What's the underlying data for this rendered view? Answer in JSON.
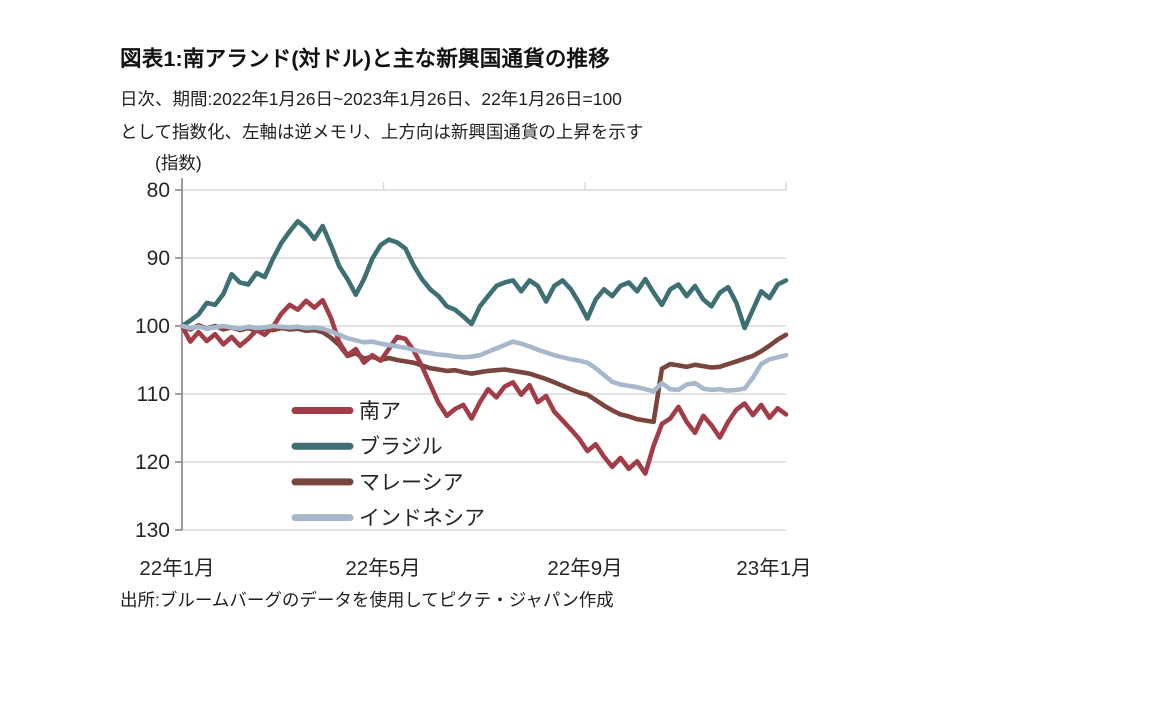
{
  "header": {
    "title": "図表1:南アランド(対ドル)と主な新興国通貨の推移",
    "subtitle_line1": "日次、期間:2022年1月26日~2023年1月26日、22年1月26日=100",
    "subtitle_line2": "として指数化、左軸は逆メモリ、上方向は新興国通貨の上昇を示す",
    "unit_label": "(指数)"
  },
  "footer": {
    "source": "出所:ブルームバーグのデータを使用してピクテ・ジャパン作成"
  },
  "colors": {
    "grid": "#D9D9D9",
    "axis": "#7F7F7F",
    "text": "#262626",
    "title_text": "#111111"
  },
  "chart_data": {
    "type": "line",
    "title": "図表1:南アランド(対ドル)と主な新興国通貨の推移",
    "xlabel": "",
    "ylabel": "(指数)",
    "grid": true,
    "legend_position": "inside-lower-left",
    "y_axis": {
      "range": [
        80,
        130
      ],
      "ticks": [
        80,
        90,
        100,
        110,
        120,
        130
      ],
      "reversed": true
    },
    "x_axis": {
      "range_days": [
        0,
        365
      ],
      "tick_labels": [
        "22年1月",
        "22年5月",
        "22年9月",
        "23年1月"
      ]
    },
    "x_days": [
      0,
      5,
      10,
      15,
      20,
      25,
      30,
      35,
      40,
      45,
      50,
      55,
      60,
      65,
      70,
      75,
      80,
      85,
      90,
      95,
      100,
      105,
      110,
      115,
      120,
      125,
      130,
      135,
      140,
      145,
      150,
      155,
      160,
      165,
      170,
      175,
      180,
      185,
      190,
      195,
      200,
      205,
      210,
      215,
      220,
      225,
      230,
      235,
      240,
      245,
      250,
      255,
      260,
      265,
      270,
      275,
      280,
      285,
      290,
      295,
      300,
      305,
      310,
      315,
      320,
      325,
      330,
      335,
      340,
      345,
      350,
      355,
      360,
      365
    ],
    "series": [
      {
        "name": "南ア",
        "color": "#A23C46",
        "values": [
          100,
          102.3,
          100.9,
          102.2,
          101.2,
          102.7,
          101.6,
          102.9,
          101.9,
          100.6,
          101.3,
          100.1,
          98.2,
          96.9,
          97.6,
          96.3,
          97.3,
          96.2,
          98.8,
          102.4,
          104.3,
          103.4,
          105.4,
          104.3,
          105.1,
          103.4,
          101.6,
          101.9,
          103.6,
          105.9,
          108.6,
          111.3,
          113.2,
          112.2,
          111.6,
          113.6,
          111.2,
          109.3,
          110.5,
          108.9,
          108.3,
          110.1,
          108.7,
          111.2,
          110.3,
          112.6,
          113.9,
          115.2,
          116.6,
          118.4,
          117.4,
          119.2,
          120.7,
          119.4,
          121.0,
          119.9,
          121.7,
          117.6,
          114.4,
          113.6,
          111.9,
          114.1,
          115.7,
          113.2,
          114.6,
          116.4,
          114.1,
          112.3,
          111.4,
          113.1,
          111.6,
          113.5,
          112.1,
          113.0
        ]
      },
      {
        "name": "ブラジル",
        "color": "#3D6F73",
        "values": [
          100,
          99.2,
          98.3,
          96.6,
          96.9,
          95.3,
          92.4,
          93.6,
          93.9,
          92.2,
          92.8,
          90.1,
          87.8,
          86.1,
          84.6,
          85.6,
          87.2,
          85.3,
          88.1,
          91.2,
          93.1,
          95.4,
          93.1,
          90.1,
          88.1,
          87.3,
          87.7,
          88.6,
          91.1,
          93.1,
          94.6,
          95.6,
          97.1,
          97.6,
          98.6,
          99.7,
          97.1,
          95.6,
          94.1,
          93.6,
          93.3,
          94.9,
          93.3,
          94.1,
          96.4,
          94.1,
          93.3,
          94.6,
          96.6,
          98.9,
          96.1,
          94.6,
          95.6,
          94.1,
          93.6,
          94.9,
          93.1,
          95.1,
          96.9,
          94.6,
          93.9,
          95.6,
          94.1,
          96.1,
          97.1,
          95.1,
          94.3,
          96.6,
          100.3,
          97.6,
          94.9,
          95.9,
          93.9,
          93.3
        ]
      },
      {
        "name": "マレーシア",
        "color": "#7A453C",
        "values": [
          100,
          100.5,
          99.9,
          100.4,
          100.0,
          100.5,
          100.2,
          100.6,
          100.3,
          100.7,
          100.4,
          100.6,
          100.3,
          100.5,
          100.4,
          100.7,
          100.6,
          100.9,
          101.7,
          102.8,
          104.4,
          104.0,
          104.8,
          104.5,
          105.0,
          104.7,
          105.0,
          105.2,
          105.4,
          105.8,
          106.2,
          106.4,
          106.6,
          106.5,
          106.8,
          107.0,
          106.8,
          106.6,
          106.5,
          106.4,
          106.6,
          106.8,
          107.0,
          107.4,
          107.8,
          108.3,
          108.8,
          109.3,
          109.8,
          110.1,
          110.9,
          111.7,
          112.4,
          113.0,
          113.3,
          113.7,
          113.9,
          114.1,
          106.3,
          105.6,
          105.8,
          106.0,
          105.7,
          105.9,
          106.1,
          106.0,
          105.6,
          105.2,
          104.8,
          104.4,
          103.7,
          102.9,
          102.0,
          101.3
        ]
      },
      {
        "name": "インドネシア",
        "color": "#A7B8CD",
        "values": [
          100,
          100.3,
          100.1,
          100.4,
          100.2,
          100.0,
          100.2,
          100.4,
          100.1,
          100.3,
          100.2,
          100.0,
          100.1,
          100.2,
          100.1,
          100.3,
          100.2,
          100.4,
          100.8,
          101.3,
          101.8,
          102.1,
          102.4,
          102.3,
          102.6,
          102.8,
          103.0,
          103.2,
          103.5,
          103.8,
          104.0,
          104.2,
          104.3,
          104.5,
          104.6,
          104.5,
          104.3,
          103.8,
          103.3,
          102.8,
          102.3,
          102.6,
          103.0,
          103.5,
          103.9,
          104.3,
          104.6,
          104.9,
          105.1,
          105.4,
          106.2,
          107.2,
          108.2,
          108.6,
          108.8,
          109.0,
          109.3,
          109.6,
          108.4,
          109.3,
          109.4,
          108.6,
          108.4,
          109.2,
          109.4,
          109.3,
          109.5,
          109.4,
          109.2,
          107.6,
          105.6,
          104.9,
          104.6,
          104.3
        ]
      }
    ]
  }
}
